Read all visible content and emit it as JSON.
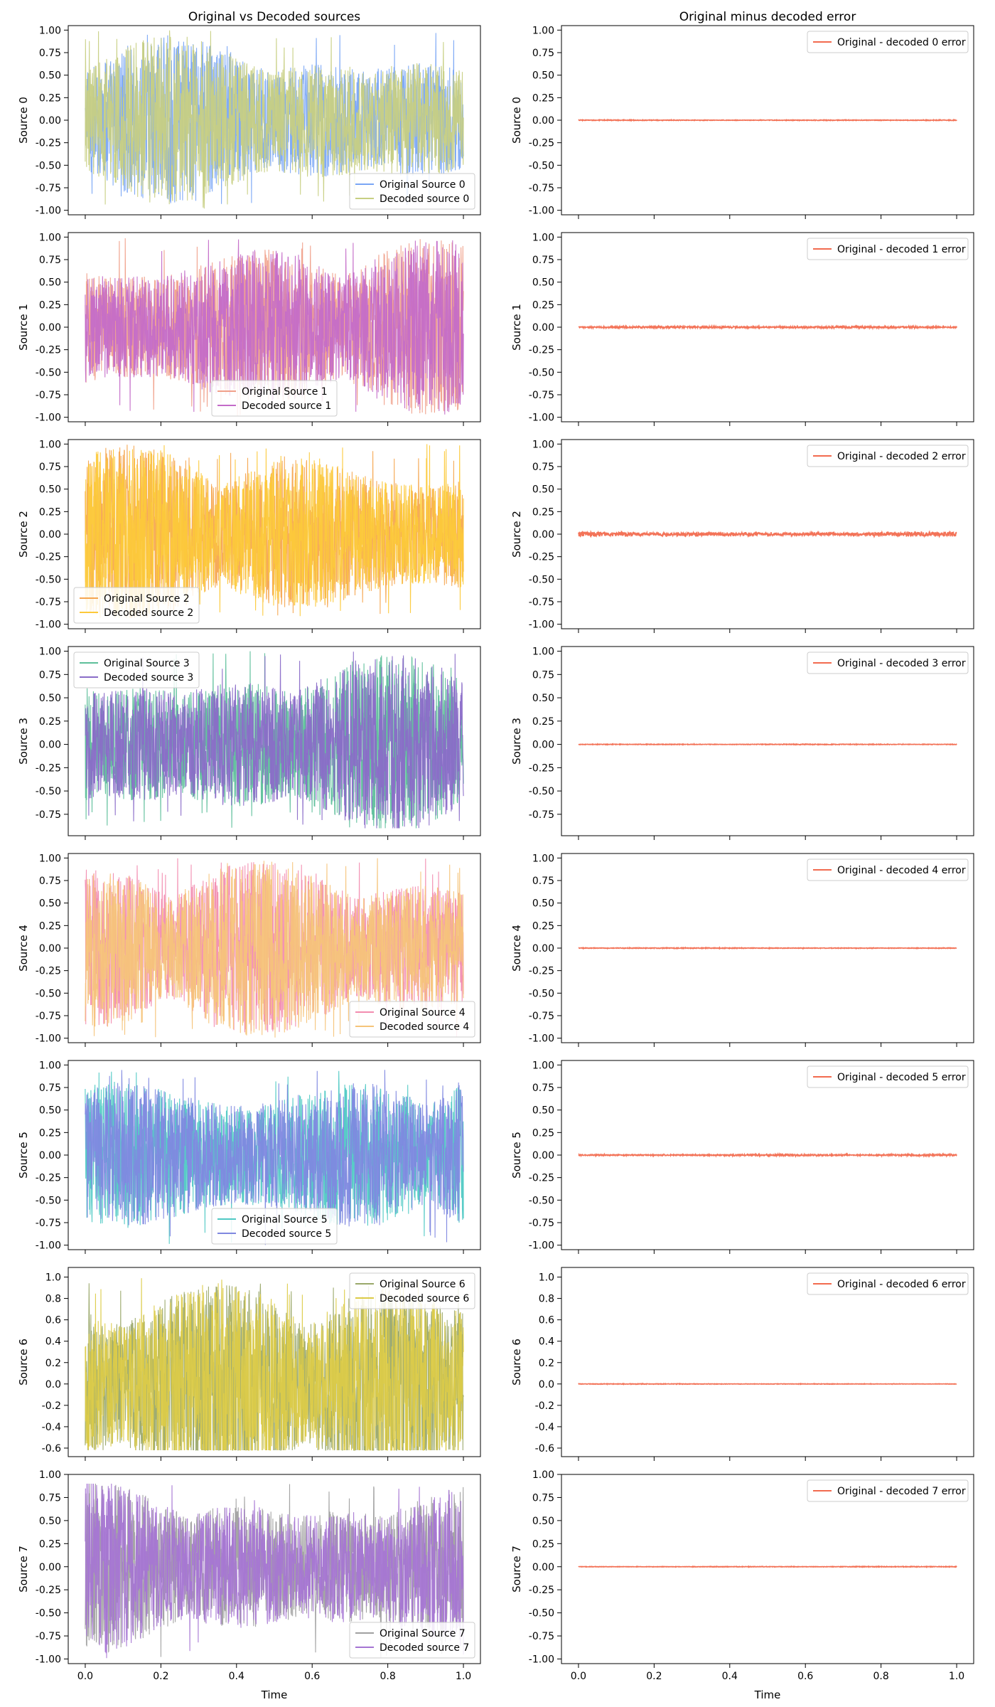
{
  "col_titles": [
    "Original vs Decoded sources",
    "Original minus decoded error"
  ],
  "xlabel": "Time",
  "chart_data": [
    {
      "type": "line",
      "row": 0,
      "column": "signal",
      "ylabel": "Source 0",
      "xlim": [
        0,
        1
      ],
      "ylim": [
        -1.05,
        1.05
      ],
      "x_ticks": [
        0.0,
        0.2,
        0.4,
        0.6,
        0.8,
        1.0
      ],
      "y_ticks": [
        -1.0,
        -0.75,
        -0.5,
        -0.25,
        0.0,
        0.25,
        0.5,
        0.75,
        1.0
      ],
      "legend_loc": "lower-right",
      "series": [
        {
          "name": "Original Source 0",
          "color": "#7aa6f5"
        },
        {
          "name": "Decoded source 0",
          "color": "#c7cf82"
        }
      ],
      "amplitude": {
        "min": -1.0,
        "max": 1.0
      }
    },
    {
      "type": "line",
      "row": 0,
      "column": "error",
      "ylabel": "Source 0",
      "xlim": [
        0,
        1
      ],
      "ylim": [
        -1.05,
        1.05
      ],
      "x_ticks": [
        0.0,
        0.2,
        0.4,
        0.6,
        0.8,
        1.0
      ],
      "y_ticks": [
        -1.0,
        -0.75,
        -0.5,
        -0.25,
        0.0,
        0.25,
        0.5,
        0.75,
        1.0
      ],
      "legend_loc": "upper-right",
      "series": [
        {
          "name": "Original - decoded 0 error",
          "color": "#f26b4f"
        }
      ],
      "amplitude": {
        "min": -0.005,
        "max": 0.005
      }
    },
    {
      "type": "line",
      "row": 1,
      "column": "signal",
      "ylabel": "Source 1",
      "xlim": [
        0,
        1
      ],
      "ylim": [
        -1.05,
        1.05
      ],
      "x_ticks": [
        0.0,
        0.2,
        0.4,
        0.6,
        0.8,
        1.0
      ],
      "y_ticks": [
        -1.0,
        -0.75,
        -0.5,
        -0.25,
        0.0,
        0.25,
        0.5,
        0.75,
        1.0
      ],
      "legend_loc": "lower-center",
      "series": [
        {
          "name": "Original Source 1",
          "color": "#f0a08a"
        },
        {
          "name": "Decoded source 1",
          "color": "#c46bc8"
        }
      ],
      "amplitude": {
        "min": -1.0,
        "max": 1.0
      }
    },
    {
      "type": "line",
      "row": 1,
      "column": "error",
      "ylabel": "Source 1",
      "xlim": [
        0,
        1
      ],
      "ylim": [
        -1.05,
        1.05
      ],
      "x_ticks": [
        0.0,
        0.2,
        0.4,
        0.6,
        0.8,
        1.0
      ],
      "y_ticks": [
        -1.0,
        -0.75,
        -0.5,
        -0.25,
        0.0,
        0.25,
        0.5,
        0.75,
        1.0
      ],
      "legend_loc": "upper-right",
      "series": [
        {
          "name": "Original - decoded 1 error",
          "color": "#f26b4f"
        }
      ],
      "amplitude": {
        "min": -0.012,
        "max": 0.012
      }
    },
    {
      "type": "line",
      "row": 2,
      "column": "signal",
      "ylabel": "Source 2",
      "xlim": [
        0,
        1
      ],
      "ylim": [
        -1.05,
        1.05
      ],
      "x_ticks": [
        0.0,
        0.2,
        0.4,
        0.6,
        0.8,
        1.0
      ],
      "y_ticks": [
        -1.0,
        -0.75,
        -0.5,
        -0.25,
        0.0,
        0.25,
        0.5,
        0.75,
        1.0
      ],
      "legend_loc": "lower-left",
      "series": [
        {
          "name": "Original Source 2",
          "color": "#f5a650"
        },
        {
          "name": "Decoded source 2",
          "color": "#fcc93a"
        }
      ],
      "amplitude": {
        "min": -0.93,
        "max": 1.0
      }
    },
    {
      "type": "line",
      "row": 2,
      "column": "error",
      "ylabel": "Source 2",
      "xlim": [
        0,
        1
      ],
      "ylim": [
        -1.05,
        1.05
      ],
      "x_ticks": [
        0.0,
        0.2,
        0.4,
        0.6,
        0.8,
        1.0
      ],
      "y_ticks": [
        -1.0,
        -0.75,
        -0.5,
        -0.25,
        0.0,
        0.25,
        0.5,
        0.75,
        1.0
      ],
      "legend_loc": "upper-right",
      "series": [
        {
          "name": "Original - decoded 2 error",
          "color": "#f26b4f"
        }
      ],
      "amplitude": {
        "min": -0.03,
        "max": 0.03
      }
    },
    {
      "type": "line",
      "row": 3,
      "column": "signal",
      "ylabel": "Source 3",
      "xlim": [
        0,
        1
      ],
      "ylim": [
        -0.98,
        1.05
      ],
      "x_ticks": [
        0.0,
        0.2,
        0.4,
        0.6,
        0.8,
        1.0
      ],
      "y_ticks": [
        -0.75,
        -0.5,
        -0.25,
        0.0,
        0.25,
        0.5,
        0.75,
        1.0
      ],
      "legend_loc": "upper-left",
      "series": [
        {
          "name": "Original Source 3",
          "color": "#5dbf9a"
        },
        {
          "name": "Decoded source 3",
          "color": "#8a6cc8"
        }
      ],
      "amplitude": {
        "min": -0.9,
        "max": 1.0
      }
    },
    {
      "type": "line",
      "row": 3,
      "column": "error",
      "ylabel": "Source 3",
      "xlim": [
        0,
        1
      ],
      "ylim": [
        -0.98,
        1.05
      ],
      "x_ticks": [
        0.0,
        0.2,
        0.4,
        0.6,
        0.8,
        1.0
      ],
      "y_ticks": [
        -0.75,
        -0.5,
        -0.25,
        0.0,
        0.25,
        0.5,
        0.75,
        1.0
      ],
      "legend_loc": "upper-right",
      "series": [
        {
          "name": "Original - decoded 3 error",
          "color": "#f26b4f"
        }
      ],
      "amplitude": {
        "min": -0.004,
        "max": 0.004
      }
    },
    {
      "type": "line",
      "row": 4,
      "column": "signal",
      "ylabel": "Source 4",
      "xlim": [
        0,
        1
      ],
      "ylim": [
        -1.05,
        1.05
      ],
      "x_ticks": [
        0.0,
        0.2,
        0.4,
        0.6,
        0.8,
        1.0
      ],
      "y_ticks": [
        -1.0,
        -0.75,
        -0.5,
        -0.25,
        0.0,
        0.25,
        0.5,
        0.75,
        1.0
      ],
      "legend_loc": "lower-right",
      "series": [
        {
          "name": "Original Source 4",
          "color": "#f28cb0"
        },
        {
          "name": "Decoded source 4",
          "color": "#f5c47a"
        }
      ],
      "amplitude": {
        "min": -1.0,
        "max": 1.0
      }
    },
    {
      "type": "line",
      "row": 4,
      "column": "error",
      "ylabel": "Source 4",
      "xlim": [
        0,
        1
      ],
      "ylim": [
        -1.05,
        1.05
      ],
      "x_ticks": [
        0.0,
        0.2,
        0.4,
        0.6,
        0.8,
        1.0
      ],
      "y_ticks": [
        -1.0,
        -0.75,
        -0.5,
        -0.25,
        0.0,
        0.25,
        0.5,
        0.75,
        1.0
      ],
      "legend_loc": "upper-right",
      "series": [
        {
          "name": "Original - decoded 4 error",
          "color": "#f26b4f"
        }
      ],
      "amplitude": {
        "min": -0.005,
        "max": 0.005
      }
    },
    {
      "type": "line",
      "row": 5,
      "column": "signal",
      "ylabel": "Source 5",
      "xlim": [
        0,
        1
      ],
      "ylim": [
        -1.05,
        1.05
      ],
      "x_ticks": [
        0.0,
        0.2,
        0.4,
        0.6,
        0.8,
        1.0
      ],
      "y_ticks": [
        -1.0,
        -0.75,
        -0.5,
        -0.25,
        0.0,
        0.25,
        0.5,
        0.75,
        1.0
      ],
      "legend_loc": "lower-center",
      "series": [
        {
          "name": "Original Source 5",
          "color": "#4fc9c4"
        },
        {
          "name": "Decoded source 5",
          "color": "#8088e0"
        }
      ],
      "amplitude": {
        "min": -1.0,
        "max": 0.95
      }
    },
    {
      "type": "line",
      "row": 5,
      "column": "error",
      "ylabel": "Source 5",
      "xlim": [
        0,
        1
      ],
      "ylim": [
        -1.05,
        1.05
      ],
      "x_ticks": [
        0.0,
        0.2,
        0.4,
        0.6,
        0.8,
        1.0
      ],
      "y_ticks": [
        -1.0,
        -0.75,
        -0.5,
        -0.25,
        0.0,
        0.25,
        0.5,
        0.75,
        1.0
      ],
      "legend_loc": "upper-right",
      "series": [
        {
          "name": "Original - decoded 5 error",
          "color": "#f26b4f"
        }
      ],
      "amplitude": {
        "min": -0.01,
        "max": 0.01
      }
    },
    {
      "type": "line",
      "row": 6,
      "column": "signal",
      "ylabel": "Source 6",
      "xlim": [
        0,
        1
      ],
      "ylim": [
        -0.68,
        1.09
      ],
      "x_ticks": [
        0.0,
        0.2,
        0.4,
        0.6,
        0.8,
        1.0
      ],
      "y_ticks": [
        -0.6,
        -0.4,
        -0.2,
        0.0,
        0.2,
        0.4,
        0.6,
        0.8,
        1.0
      ],
      "legend_loc": "upper-right",
      "series": [
        {
          "name": "Original Source 6",
          "color": "#9aa86a"
        },
        {
          "name": "Decoded source 6",
          "color": "#dccb48"
        }
      ],
      "amplitude": {
        "min": -0.62,
        "max": 1.0
      }
    },
    {
      "type": "line",
      "row": 6,
      "column": "error",
      "ylabel": "Source 6",
      "xlim": [
        0,
        1
      ],
      "ylim": [
        -0.68,
        1.09
      ],
      "x_ticks": [
        0.0,
        0.2,
        0.4,
        0.6,
        0.8,
        1.0
      ],
      "y_ticks": [
        -0.6,
        -0.4,
        -0.2,
        0.0,
        0.2,
        0.4,
        0.6,
        0.8,
        1.0
      ],
      "legend_loc": "upper-right",
      "series": [
        {
          "name": "Original - decoded 6 error",
          "color": "#f26b4f"
        }
      ],
      "amplitude": {
        "min": -0.003,
        "max": 0.003
      }
    },
    {
      "type": "line",
      "row": 7,
      "column": "signal",
      "ylabel": "Source 7",
      "xlim": [
        0,
        1
      ],
      "ylim": [
        -1.05,
        1.0
      ],
      "x_ticks": [
        0.0,
        0.2,
        0.4,
        0.6,
        0.8,
        1.0
      ],
      "y_ticks": [
        -1.0,
        -0.75,
        -0.5,
        -0.25,
        0.0,
        0.25,
        0.5,
        0.75,
        1.0
      ],
      "legend_loc": "lower-right",
      "series": [
        {
          "name": "Original Source 7",
          "color": "#a0a0a0"
        },
        {
          "name": "Decoded source 7",
          "color": "#a575d3"
        }
      ],
      "amplitude": {
        "min": -1.0,
        "max": 0.9
      }
    },
    {
      "type": "line",
      "row": 7,
      "column": "error",
      "ylabel": "Source 7",
      "xlim": [
        0,
        1
      ],
      "ylim": [
        -1.05,
        1.0
      ],
      "x_ticks": [
        0.0,
        0.2,
        0.4,
        0.6,
        0.8,
        1.0
      ],
      "y_ticks": [
        -1.0,
        -0.75,
        -0.5,
        -0.25,
        0.0,
        0.25,
        0.5,
        0.75,
        1.0
      ],
      "legend_loc": "upper-right",
      "series": [
        {
          "name": "Original - decoded 7 error",
          "color": "#f26b4f"
        }
      ],
      "amplitude": {
        "min": -0.004,
        "max": 0.004
      }
    }
  ]
}
